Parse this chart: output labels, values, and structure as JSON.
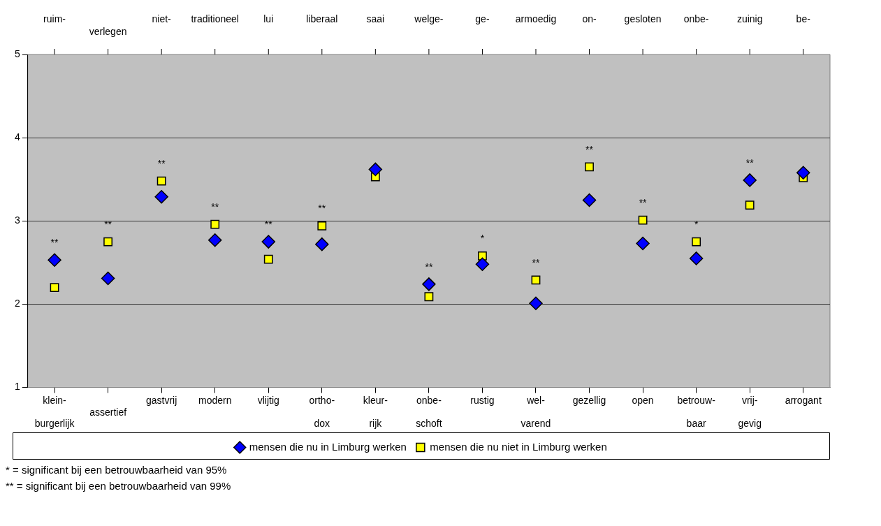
{
  "chart_data": {
    "type": "scatter",
    "categories": [
      "klein-\n\nburgerlijk",
      "\nassertief",
      "gastvrij",
      "modern",
      "vlijtig",
      "ortho-\n\ndox",
      "kleur-\n\nrijk",
      "onbe-\n\nschoft",
      "rustig",
      "wel-\n\nvarend",
      "gezellig",
      "open",
      "betrouw-\n\nbaar",
      "vrij-\n\ngevig",
      "arrogant"
    ],
    "ylim": [
      1,
      5
    ],
    "yticks": [
      1,
      2,
      3,
      4,
      5
    ],
    "grid": "y",
    "legend": "bottom",
    "series": [
      {
        "name": "mensen die nu in Limburg werken",
        "color": "#0000ff",
        "marker": "diamond",
        "values": [
          2.53,
          2.31,
          3.29,
          2.77,
          2.75,
          2.72,
          3.62,
          2.24,
          2.48,
          2.01,
          3.25,
          2.73,
          2.55,
          3.49,
          3.58
        ]
      },
      {
        "name": "mensen die nu niet in Limburg werken",
        "color": "#ffff00",
        "marker": "square",
        "values": [
          2.2,
          2.75,
          3.48,
          2.96,
          2.54,
          2.94,
          3.53,
          2.09,
          2.58,
          2.29,
          3.65,
          3.01,
          2.75,
          3.19,
          3.52
        ]
      }
    ],
    "annotations": [
      "ruim-",
      "\nverlegen",
      "niet-",
      "traditioneel",
      "lui",
      "liberaal",
      "saai",
      "welge-",
      "ge-",
      "armoedig",
      "on-",
      "gesloten",
      "onbe-",
      "zuinig",
      "be-",
      {
        "text": "**",
        "x": "klein-\n\nburgerlijk",
        "y": 2.53
      },
      {
        "text": "**",
        "x": "\nassertief",
        "y": 2.75
      },
      {
        "text": "**",
        "x": "gastvrij",
        "y": 3.48
      },
      {
        "text": "**",
        "x": "modern",
        "y": 2.96
      },
      {
        "text": "**",
        "x": "vlijtig",
        "y": 2.75
      },
      {
        "text": "**",
        "x": "ortho-\n\ndox",
        "y": 2.94
      },
      {
        "text": "**",
        "x": "onbe-\n\nschoft",
        "y": 2.24
      },
      {
        "text": "*",
        "x": "rustig",
        "y": 2.58
      },
      {
        "text": "**",
        "x": "wel-\n\nvarend",
        "y": 2.29
      },
      {
        "text": "**",
        "x": "gezellig",
        "y": 3.65
      },
      {
        "text": "**",
        "x": "open",
        "y": 3.01
      },
      {
        "text": "*",
        "x": "betrouw-\n\nbaar",
        "y": 2.75
      },
      {
        "text": "**",
        "x": "vrij-\n\ngevig",
        "y": 3.49
      },
      "* = significant bij een betrouwbaarheid van 95%",
      "** = significant bij een betrouwbaarheid van 99%"
    ]
  }
}
